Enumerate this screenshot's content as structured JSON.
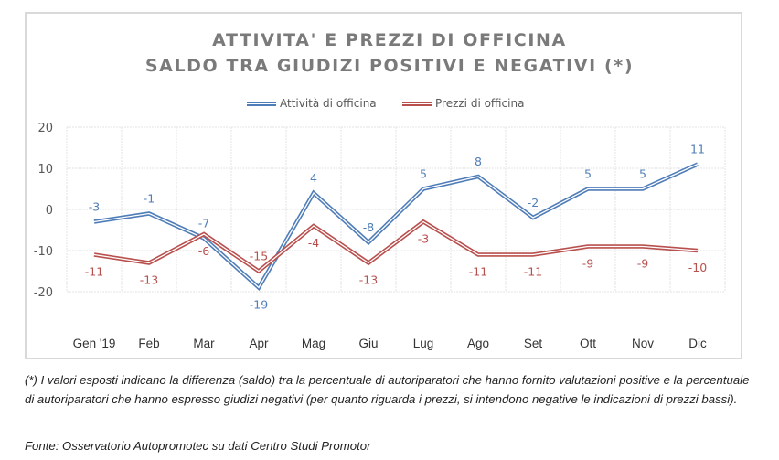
{
  "chart_data": {
    "type": "line",
    "title": [
      "ATTIVITA' E PREZZI DI OFFICINA",
      "SALDO TRA GIUDIZI POSITIVI E NEGATIVI (*)"
    ],
    "xlabel": "",
    "ylabel": "",
    "categories": [
      "Gen '19",
      "Feb",
      "Mar",
      "Apr",
      "Mag",
      "Giu",
      "Lug",
      "Ago",
      "Set",
      "Ott",
      "Nov",
      "Dic"
    ],
    "ylim": [
      -20,
      20
    ],
    "yticks": [
      20,
      10,
      0,
      -10,
      -20
    ],
    "grid": true,
    "legend_position": "top-center",
    "series": [
      {
        "name": "Attività di officina",
        "color": "#4f7db8",
        "values": [
          -3,
          -1,
          -7,
          -19,
          4,
          -8,
          5,
          8,
          -2,
          5,
          5,
          11
        ],
        "label_positions": [
          "above",
          "above",
          "above",
          "below",
          "above",
          "above",
          "above",
          "above",
          "above",
          "above",
          "above",
          "above"
        ]
      },
      {
        "name": "Prezzi di officina",
        "color": "#b8504e",
        "values": [
          -11,
          -13,
          -6,
          -15,
          -4,
          -13,
          -3,
          -11,
          -11,
          -9,
          -9,
          -10
        ],
        "label_positions": [
          "below",
          "below",
          "below",
          "above",
          "below",
          "below",
          "below",
          "below",
          "below",
          "below",
          "below",
          "below"
        ]
      }
    ]
  },
  "footnote": "(*) I valori esposti indicano la differenza (saldo) tra la percentuale di autoriparatori che hanno fornito valutazioni positive e la percentuale di autoriparatori che hanno espresso giudizi negativi (per quanto riguarda i prezzi, si intendono negative le indicazioni di prezzi bassi).",
  "source": "Fonte: Osservatorio Autopromotec su dati Centro Studi Promotor"
}
